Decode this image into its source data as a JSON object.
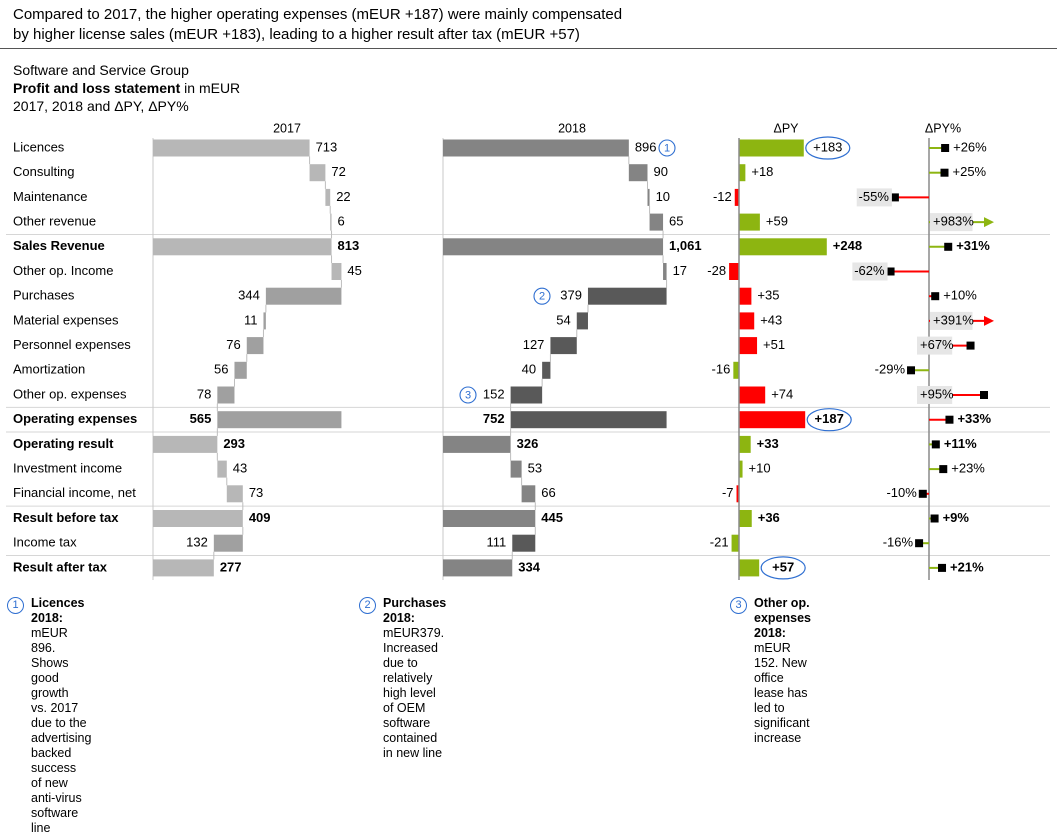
{
  "headline": {
    "line1": "Compared to 2017, the higher operating expenses (mEUR +187) were mainly compensated",
    "line2": "by higher license sales (mEUR +183), leading to a higher result after tax (mEUR +57)"
  },
  "subtitle": {
    "company": "Software and Service Group",
    "title_bold": "Profit and loss statement",
    "title_rest": " in mEUR",
    "period": "2017, 2018 and ΔPY, ΔPY%"
  },
  "colors": {
    "bar2017": "#b7b7b7",
    "bar2017_mid": "#a0a0a0",
    "bar2018": "#848484",
    "bar2018_dark": "#595959",
    "positive": "#8db511",
    "negative": "#ff0000",
    "highlight": "#2f6fd1",
    "label_bg": "#e6e6e6"
  },
  "chart_data": {
    "type": "table",
    "columns": {
      "ac2017": "2017",
      "ac2018": "2018",
      "dpy": "ΔPY",
      "dpy_pct": "ΔPY%"
    },
    "rows": [
      {
        "label": "Licences",
        "kind": "rev",
        "bold": false,
        "v2017": 713,
        "v2018": 896,
        "l2017": "713",
        "l2018": "896",
        "dpy": 183,
        "dpy_label": "+183",
        "good": true,
        "pct": 26,
        "pct_label": "+26%",
        "marker": "1",
        "dpy_circle": true
      },
      {
        "label": "Consulting",
        "kind": "rev",
        "bold": false,
        "v2017": 72,
        "v2018": 90,
        "l2017": "72",
        "l2018": "90",
        "dpy": 18,
        "dpy_label": "+18",
        "good": true,
        "pct": 25,
        "pct_label": "+25%"
      },
      {
        "label": "Maintenance",
        "kind": "rev",
        "bold": false,
        "v2017": 22,
        "v2018": 10,
        "l2017": "22",
        "l2018": "10",
        "dpy": -12,
        "dpy_label": "-12",
        "good": false,
        "pct": -55,
        "pct_label": "-55%"
      },
      {
        "label": "Other revenue",
        "kind": "rev",
        "bold": false,
        "v2017": 6,
        "v2018": 65,
        "l2017": "6",
        "l2018": "65",
        "dpy": 59,
        "dpy_label": "+59",
        "good": true,
        "pct": 983,
        "pct_label": "+983%",
        "pct_outlier": true
      },
      {
        "label": "Sales Revenue",
        "kind": "total",
        "bold": true,
        "v2017": 813,
        "v2018": 1061,
        "l2017": "813",
        "l2018": "1,061",
        "dpy": 248,
        "dpy_label": "+248",
        "good": true,
        "pct": 31,
        "pct_label": "+31%",
        "sep": true
      },
      {
        "label": "Other op. Income",
        "kind": "rev",
        "bold": false,
        "v2017": 45,
        "v2018": 17,
        "l2017": "45",
        "l2018": "17",
        "dpy": -28,
        "dpy_label": "-28",
        "good": false,
        "pct": -62,
        "pct_label": "-62%"
      },
      {
        "label": "Purchases",
        "kind": "exp",
        "bold": false,
        "v2017": 344,
        "v2018": 379,
        "l2017": "344",
        "l2018": "379",
        "dpy": 35,
        "dpy_label": "+35",
        "good": false,
        "pct": 10,
        "pct_label": "+10%",
        "marker": "2"
      },
      {
        "label": "Material expenses",
        "kind": "exp",
        "bold": false,
        "v2017": 11,
        "v2018": 54,
        "l2017": "11",
        "l2018": "54",
        "dpy": 43,
        "dpy_label": "+43",
        "good": false,
        "pct": 391,
        "pct_label": "+391%",
        "pct_outlier": true
      },
      {
        "label": "Personnel expenses",
        "kind": "exp",
        "bold": false,
        "v2017": 76,
        "v2018": 127,
        "l2017": "76",
        "l2018": "127",
        "dpy": 51,
        "dpy_label": "+51",
        "good": false,
        "pct": 67,
        "pct_label": "+67%"
      },
      {
        "label": "Amortization",
        "kind": "exp",
        "bold": false,
        "v2017": 56,
        "v2018": 40,
        "l2017": "56",
        "l2018": "40",
        "dpy": -16,
        "dpy_label": "-16",
        "good": true,
        "pct": -29,
        "pct_label": "-29%"
      },
      {
        "label": "Other op. expenses",
        "kind": "exp",
        "bold": false,
        "v2017": 78,
        "v2018": 152,
        "l2017": "78",
        "l2018": "152",
        "dpy": 74,
        "dpy_label": "+74",
        "good": false,
        "pct": 95,
        "pct_label": "+95%",
        "marker": "3"
      },
      {
        "label": "Operating expenses",
        "kind": "exptotal",
        "bold": true,
        "v2017": 565,
        "v2018": 752,
        "l2017": "565",
        "l2018": "752",
        "dpy": 187,
        "dpy_label": "+187",
        "good": false,
        "pct": 33,
        "pct_label": "+33%",
        "sep": true,
        "dpy_circle": true
      },
      {
        "label": "Operating result",
        "kind": "total",
        "bold": true,
        "v2017": 293,
        "v2018": 326,
        "l2017": "293",
        "l2018": "326",
        "dpy": 33,
        "dpy_label": "+33",
        "good": true,
        "pct": 11,
        "pct_label": "+11%",
        "sep": true
      },
      {
        "label": "Investment income",
        "kind": "rev",
        "bold": false,
        "v2017": 43,
        "v2018": 53,
        "l2017": "43",
        "l2018": "53",
        "dpy": 10,
        "dpy_label": "+10",
        "good": true,
        "pct": 23,
        "pct_label": "+23%"
      },
      {
        "label": "Financial income, net",
        "kind": "rev",
        "bold": false,
        "v2017": 73,
        "v2018": 66,
        "l2017": "73",
        "l2018": "66",
        "dpy": -7,
        "dpy_label": "-7",
        "good": false,
        "pct": -10,
        "pct_label": "-10%"
      },
      {
        "label": "Result before tax",
        "kind": "total",
        "bold": true,
        "v2017": 409,
        "v2018": 445,
        "l2017": "409",
        "l2018": "445",
        "dpy": 36,
        "dpy_label": "+36",
        "good": true,
        "pct": 9,
        "pct_label": "+9%",
        "sep": true
      },
      {
        "label": "Income tax",
        "kind": "exp",
        "bold": false,
        "v2017": 132,
        "v2018": 111,
        "l2017": "132",
        "l2018": "111",
        "dpy": -21,
        "dpy_label": "-21",
        "good": true,
        "pct": -16,
        "pct_label": "-16%"
      },
      {
        "label": "Result after tax",
        "kind": "total",
        "bold": true,
        "v2017": 277,
        "v2018": 334,
        "l2017": "277",
        "l2018": "334",
        "dpy": 57,
        "dpy_label": "+57",
        "good": true,
        "pct": 21,
        "pct_label": "+21%",
        "sep": true,
        "dpy_circle": true
      }
    ]
  },
  "notes": [
    {
      "num": "1",
      "bold": "Licences 2018:",
      "line1": " mEUR 896. Shows good growth",
      "line2": "vs. 2017 due to the advertising backed success",
      "line3": "of new anti-virus software line"
    },
    {
      "num": "2",
      "bold": "Purchases 2018:",
      "line1": " mEUR379. Increased due to",
      "line2": "relatively high level of OEM software contained",
      "line3": "in new line"
    },
    {
      "num": "3",
      "bold": "Other op. expenses 2018:",
      "line1": " mEUR 152. New office",
      "line2": "lease has led to significant increase",
      "line3": ""
    }
  ]
}
